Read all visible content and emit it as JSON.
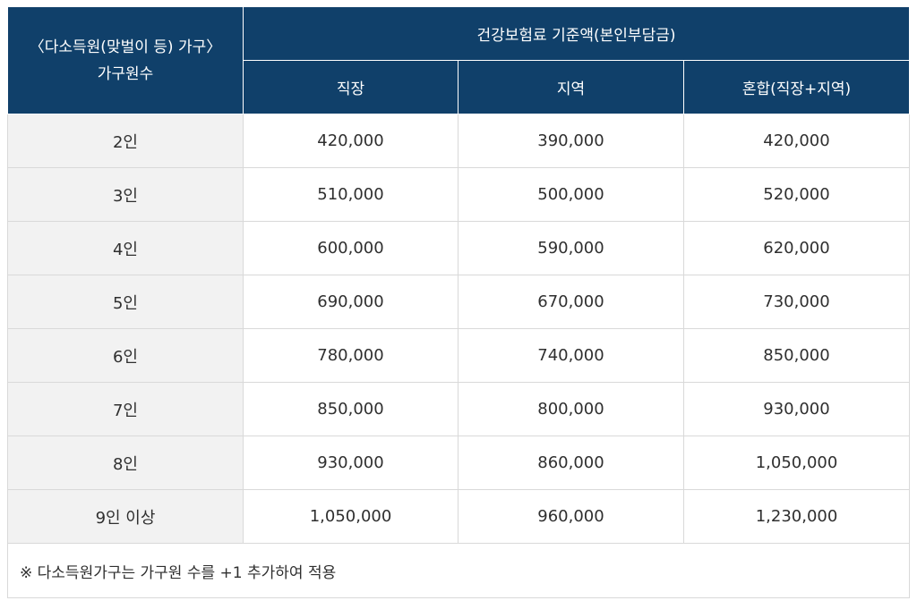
{
  "table": {
    "corner_header": {
      "line1": "〈다소득원(맞벌이 등) 가구〉",
      "line2": "가구원수"
    },
    "group_header": "건강보험료 기준액(본인부담금)",
    "sub_headers": [
      "직장",
      "지역",
      "혼합(직장+지역)"
    ],
    "rows": [
      {
        "label": "2인",
        "values": [
          "420,000",
          "390,000",
          "420,000"
        ]
      },
      {
        "label": "3인",
        "values": [
          "510,000",
          "500,000",
          "520,000"
        ]
      },
      {
        "label": "4인",
        "values": [
          "600,000",
          "590,000",
          "620,000"
        ]
      },
      {
        "label": "5인",
        "values": [
          "690,000",
          "670,000",
          "730,000"
        ]
      },
      {
        "label": "6인",
        "values": [
          "780,000",
          "740,000",
          "850,000"
        ]
      },
      {
        "label": "7인",
        "values": [
          "850,000",
          "800,000",
          "930,000"
        ]
      },
      {
        "label": "8인",
        "values": [
          "930,000",
          "860,000",
          "1,050,000"
        ]
      },
      {
        "label": "9인 이상",
        "values": [
          "1,050,000",
          "960,000",
          "1,230,000"
        ]
      }
    ],
    "footnote": "※ 다소득원가구는 가구원 수를 +1 추가하여 적용"
  },
  "colors": {
    "header_bg": "#10406a",
    "header_text": "#ffffff",
    "row_label_bg": "#f2f2f2",
    "border": "#d9d9d9"
  }
}
